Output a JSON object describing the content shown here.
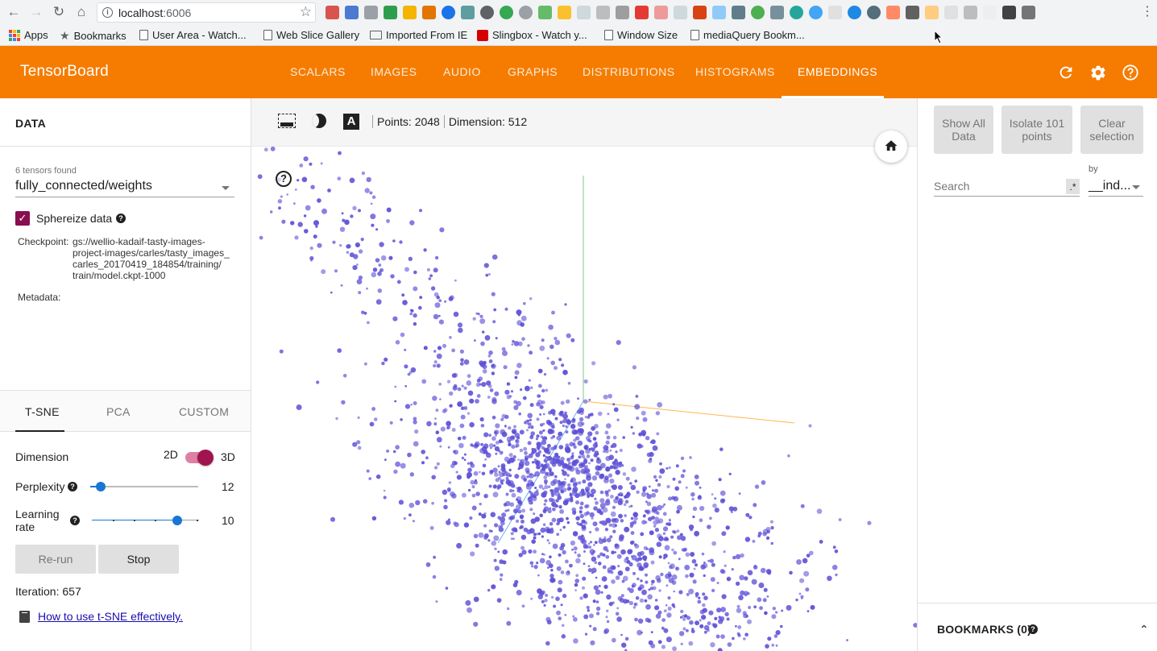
{
  "browser": {
    "url_host": "localhost",
    "url_port": ":6006",
    "bookmarks": [
      {
        "label": "Apps",
        "icon": "apps-grid-icon"
      },
      {
        "label": "Bookmarks",
        "icon": "star-icon"
      },
      {
        "label": "User Area - Watch...",
        "icon": "page-icon"
      },
      {
        "label": "Web Slice Gallery",
        "icon": "page-icon"
      },
      {
        "label": "Imported From IE",
        "icon": "folder-icon"
      },
      {
        "label": "Slingbox - Watch y...",
        "icon": "slingbox-icon"
      },
      {
        "label": "Window Size",
        "icon": "page-icon"
      },
      {
        "label": "mediaQuery Bookm...",
        "icon": "page-icon"
      }
    ]
  },
  "header": {
    "title": "TensorBoard",
    "tabs": [
      "SCALARS",
      "IMAGES",
      "AUDIO",
      "GRAPHS",
      "DISTRIBUTIONS",
      "HISTOGRAMS",
      "EMBEDDINGS"
    ],
    "active_tab": "EMBEDDINGS",
    "bg_color": "#f57c00"
  },
  "data_panel": {
    "title": "DATA",
    "tensors_found": "6 tensors found",
    "selected_tensor": "fully_connected/weights",
    "sphereize_label": "Sphereize data",
    "sphereize_checked": true,
    "checkpoint_label": "Checkpoint:",
    "checkpoint_lines": [
      "gs://wellio-kadaif-tasty-images-",
      "project-images/carles/tasty_images_",
      "carles_20170419_184854/training/",
      "train/model.ckpt-1000"
    ],
    "metadata_label": "Metadata:"
  },
  "projection": {
    "tabs": [
      "T-SNE",
      "PCA",
      "CUSTOM"
    ],
    "active_tab": "T-SNE",
    "dimension_label": "Dimension",
    "dim_2d": "2D",
    "dim_3d": "3D",
    "dimension_3d_enabled": true,
    "perplexity_label": "Perplexity",
    "perplexity_value": "12",
    "learning_rate_label_line1": "Learning",
    "learning_rate_label_line2": "rate",
    "learning_rate_value": "10",
    "rerun_label": "Re-run",
    "stop_label": "Stop",
    "iteration_text": "Iteration: 657",
    "help_link": "How to use t-SNE effectively."
  },
  "toolbar": {
    "points_text": "Points: 2048",
    "dimension_text": "Dimension: 512"
  },
  "inspector": {
    "show_all_line1": "Show All",
    "show_all_line2": "Data",
    "isolate_line1": "Isolate 101",
    "isolate_line2": "points",
    "clear_line1": "Clear",
    "clear_line2": "selection",
    "search_placeholder": "Search",
    "regex_label": ".*",
    "by_label": "by",
    "by_value": "__ind...",
    "bookmarks_label": "BOOKMARKS (0)"
  },
  "scatter": {
    "point_color": "#5c4fd6",
    "axis_x_color": "#ffb74d",
    "axis_y_color": "#81c784",
    "axis_z_color": "#64b5f6"
  }
}
